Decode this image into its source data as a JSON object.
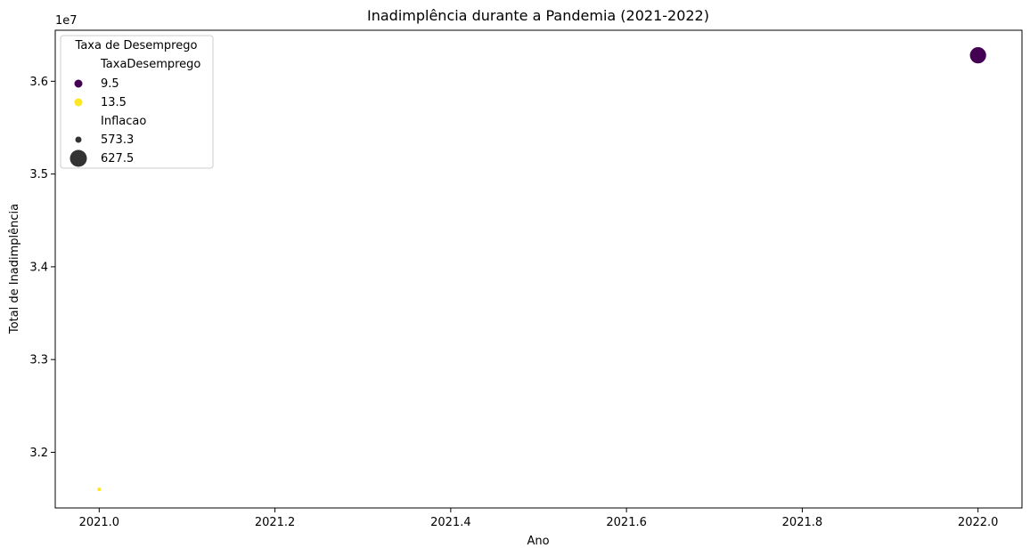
{
  "chart_data": {
    "type": "scatter",
    "title": "Inadimplência durante a Pandemia (2021-2022)",
    "xlabel": "Ano",
    "ylabel": "Total de Inadimplência",
    "y_offset_label": "1e7",
    "xlim": [
      2020.95,
      2022.05
    ],
    "ylim": [
      31400000,
      36550000
    ],
    "xticks": [
      2021.0,
      2021.2,
      2021.4,
      2021.6,
      2021.8,
      2022.0
    ],
    "xtick_labels": [
      "2021.0",
      "2021.2",
      "2021.4",
      "2021.6",
      "2021.8",
      "2022.0"
    ],
    "yticks": [
      32000000,
      33000000,
      34000000,
      35000000,
      36000000
    ],
    "ytick_labels": [
      "3.2",
      "3.3",
      "3.4",
      "3.5",
      "3.6"
    ],
    "grid": false,
    "points": [
      {
        "x": 2021.0,
        "y": 31600000,
        "TaxaDesemprego": 13.5,
        "Inflacao": 573.3,
        "color": "#fde725"
      },
      {
        "x": 2022.0,
        "y": 36280000,
        "TaxaDesemprego": 9.5,
        "Inflacao": 627.5,
        "color": "#440154"
      }
    ],
    "legend": {
      "position": "upper-left",
      "title": "Taxa de Desemprego",
      "hue_title": "TaxaDesemprego",
      "hue_entries": [
        {
          "label": "9.5",
          "color": "#440154"
        },
        {
          "label": "13.5",
          "color": "#fde725"
        }
      ],
      "size_title": "Inflacao",
      "size_entries": [
        {
          "label": "573.3",
          "color": "#333333"
        },
        {
          "label": "627.5",
          "color": "#333333"
        }
      ]
    }
  }
}
